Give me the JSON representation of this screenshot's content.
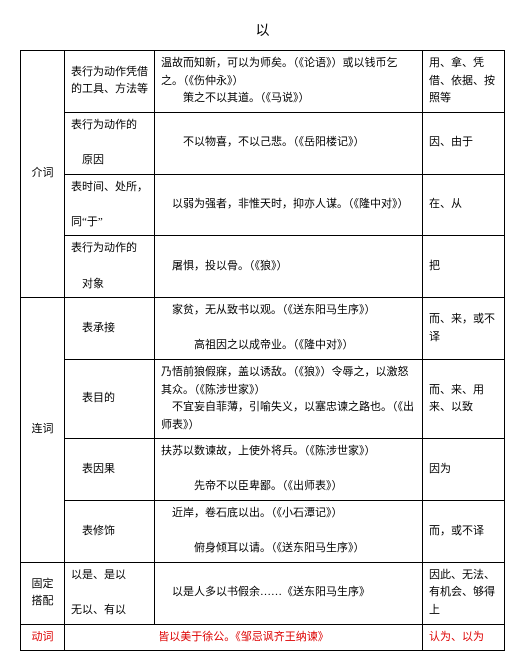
{
  "title": "以",
  "colA": {
    "jieci": "介词",
    "lianci": "连词",
    "guding": "固定搭配",
    "dongci": "动词"
  },
  "rows": {
    "r1": {
      "b": "表行为动作凭借的工具、方法等",
      "c1": "温故而知新，可以为师矣。（《论语》）或以钱币乞之。（《伤仲永》）",
      "c2": "策之不以其道。（《马说》）",
      "d": "用、拿、凭借、依据、按照等"
    },
    "r2": {
      "b1": "表行为动作的",
      "b2": "原因",
      "c": "不以物喜，不以己悲。（《岳阳楼记》）",
      "d": "因、由于"
    },
    "r3": {
      "b1": "表时间、处所，",
      "b2": "同“于”",
      "c": "以弱为强者，非惟天时，抑亦人谋。（《隆中对》）",
      "d": "在、从"
    },
    "r4": {
      "b1": "表行为动作的",
      "b2": "对象",
      "c": "屠惧，投以骨。（《狼》）",
      "d": "把"
    },
    "r5": {
      "b": "表承接",
      "c1": "家贫，无从致书以观。（《送东阳马生序》）",
      "c2": "高祖因之以成帝业。（《隆中对》）",
      "d": "而、来，或不译"
    },
    "r6": {
      "b": "表目的",
      "c1": "乃悟前狼假寐，盖以诱敌。（《狼》）令辱之，以激怒其众。（《陈涉世家》）",
      "c2": "不宜妄自菲薄，引喻失义，以塞忠谏之路也。（《出师表》）",
      "d": "而、来、用来、以致"
    },
    "r7": {
      "b": "表因果",
      "c1": "扶苏以数谏故，上使外将兵。（《陈涉世家》）",
      "c2": "先帝不以臣卑鄙。（《出师表》）",
      "d": "因为"
    },
    "r8": {
      "b": "表修饰",
      "c1": "近岸，卷石底以出。（《小石潭记》）",
      "c2": "俯身倾耳以请。（《送东阳马生序》）",
      "d": "而，或不译"
    },
    "r9": {
      "b1": "以是、是以",
      "b2": "无以、有以",
      "c": "以是人多以书假余……《送东阳马生序》",
      "d": "因此、无法、有机会、够得上"
    },
    "r10": {
      "c": "皆以美于徐公。《邹忌讽齐王纳谏》",
      "d": "认为、以为"
    }
  }
}
